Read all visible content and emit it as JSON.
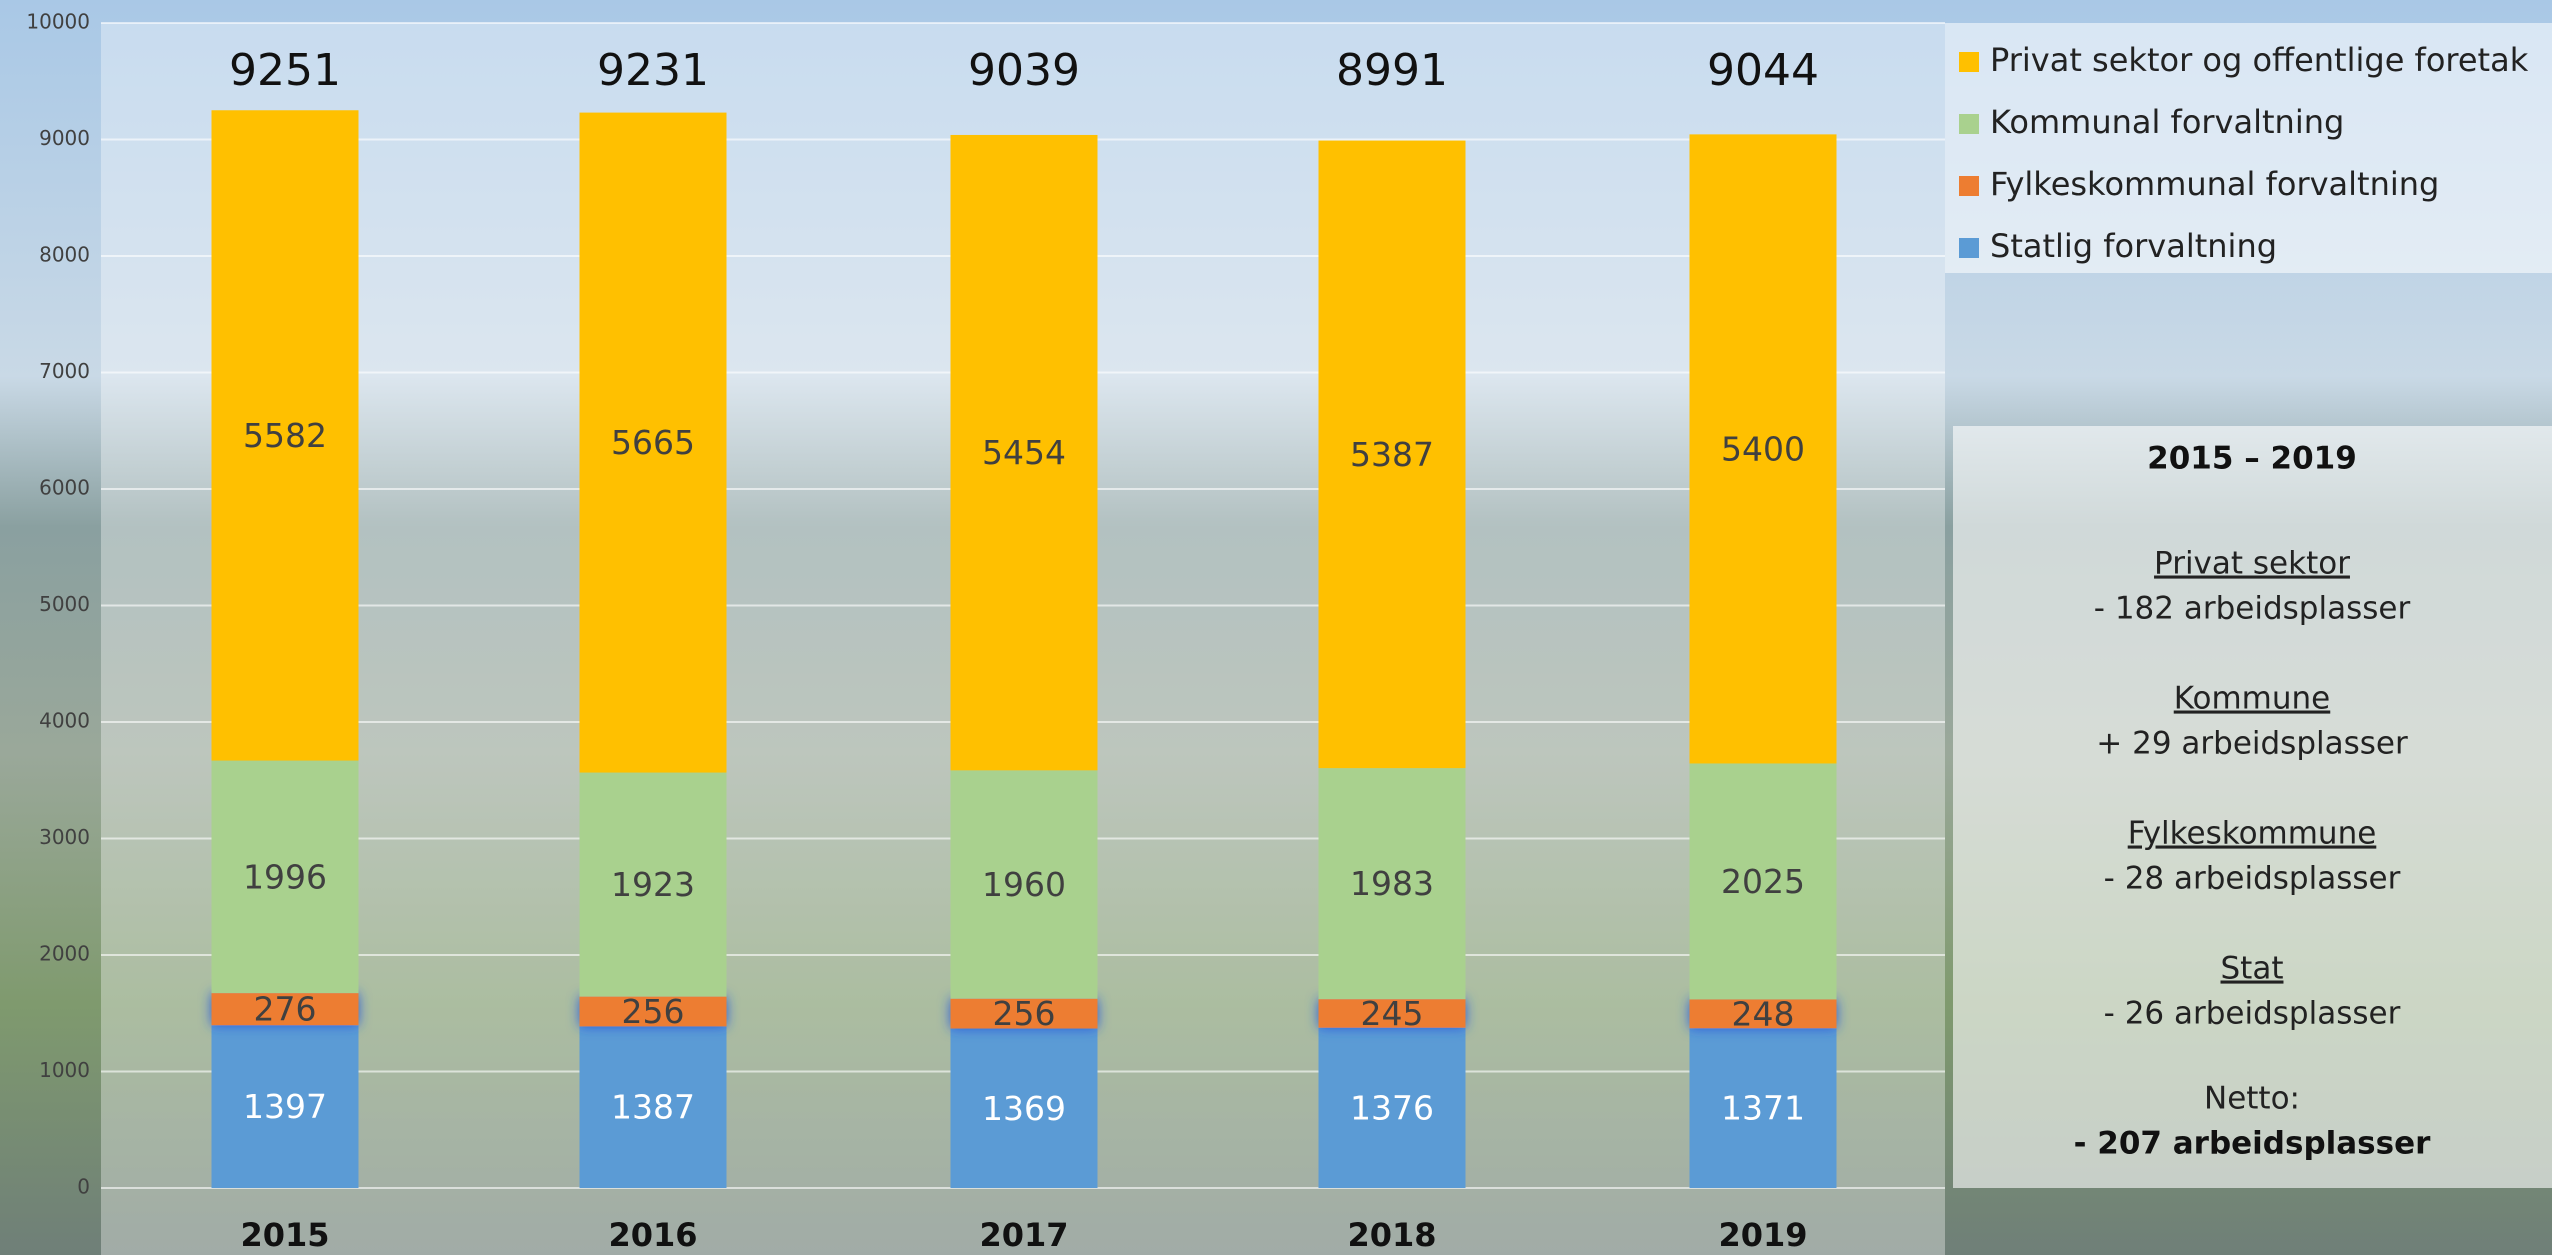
{
  "chart_data": {
    "type": "stacked_bar",
    "categories": [
      "2015",
      "2016",
      "2017",
      "2018",
      "2019"
    ],
    "series": [
      {
        "name": "Statlig forvaltning",
        "color": "#5b9bd5",
        "label_color": "#ffffff",
        "values": [
          1397,
          1387,
          1369,
          1376,
          1371
        ]
      },
      {
        "name": "Fylkeskommunal forvaltning",
        "color": "#ed7d31",
        "label_color": "#404040",
        "values": [
          276,
          256,
          256,
          245,
          248
        ]
      },
      {
        "name": "Kommunal forvaltning",
        "color": "#a9d18e",
        "label_color": "#404040",
        "values": [
          1996,
          1923,
          1960,
          1983,
          2025
        ]
      },
      {
        "name": "Privat sektor og offentlige foretak",
        "color": "#ffc000",
        "label_color": "#404040",
        "values": [
          5582,
          5665,
          5454,
          5387,
          5400
        ]
      }
    ],
    "totals": [
      9251,
      9231,
      9039,
      8991,
      9044
    ],
    "ylim": [
      0,
      10000
    ],
    "yticks": [
      0,
      1000,
      2000,
      3000,
      4000,
      5000,
      6000,
      7000,
      8000,
      9000,
      10000
    ],
    "grid": true,
    "legend": "top-right",
    "summary": {
      "title": "2015 – 2019",
      "items": [
        {
          "heading": "Privat sektor",
          "text": "- 182 arbeidsplasser"
        },
        {
          "heading": "Kommune",
          "text": "+ 29 arbeidsplasser"
        },
        {
          "heading": "Fylkeskommune",
          "text": "- 28 arbeidsplasser"
        },
        {
          "heading": "Stat",
          "text": "- 26 arbeidsplasser"
        }
      ],
      "net_label": "Netto:",
      "net_text": "- 207 arbeidsplasser"
    }
  }
}
